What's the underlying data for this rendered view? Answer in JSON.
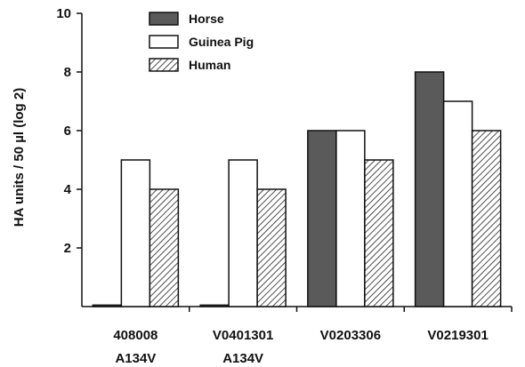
{
  "chart_data": {
    "type": "bar",
    "title": "",
    "xlabel": "",
    "ylabel": "HA units / 50 µl (log 2)",
    "ylim": [
      0,
      10
    ],
    "yticks": [
      2,
      4,
      6,
      8,
      10
    ],
    "grid": false,
    "legend_position": "top-left",
    "categories": [
      {
        "line1": "408008",
        "line2": "A134V"
      },
      {
        "line1": "V0401301",
        "line2": "A134V"
      },
      {
        "line1": "V0203306",
        "line2": ""
      },
      {
        "line1": "V0219301",
        "line2": ""
      }
    ],
    "series": [
      {
        "name": "Horse",
        "pattern": "solid-gray",
        "color": "#5a5a5a",
        "values": [
          0.05,
          0.05,
          6,
          8
        ]
      },
      {
        "name": "Guinea Pig",
        "pattern": "white",
        "color": "#ffffff",
        "values": [
          5,
          5,
          6,
          7
        ]
      },
      {
        "name": "Human",
        "pattern": "hatched",
        "color": "#888888",
        "values": [
          4,
          4,
          5,
          6
        ]
      }
    ]
  }
}
